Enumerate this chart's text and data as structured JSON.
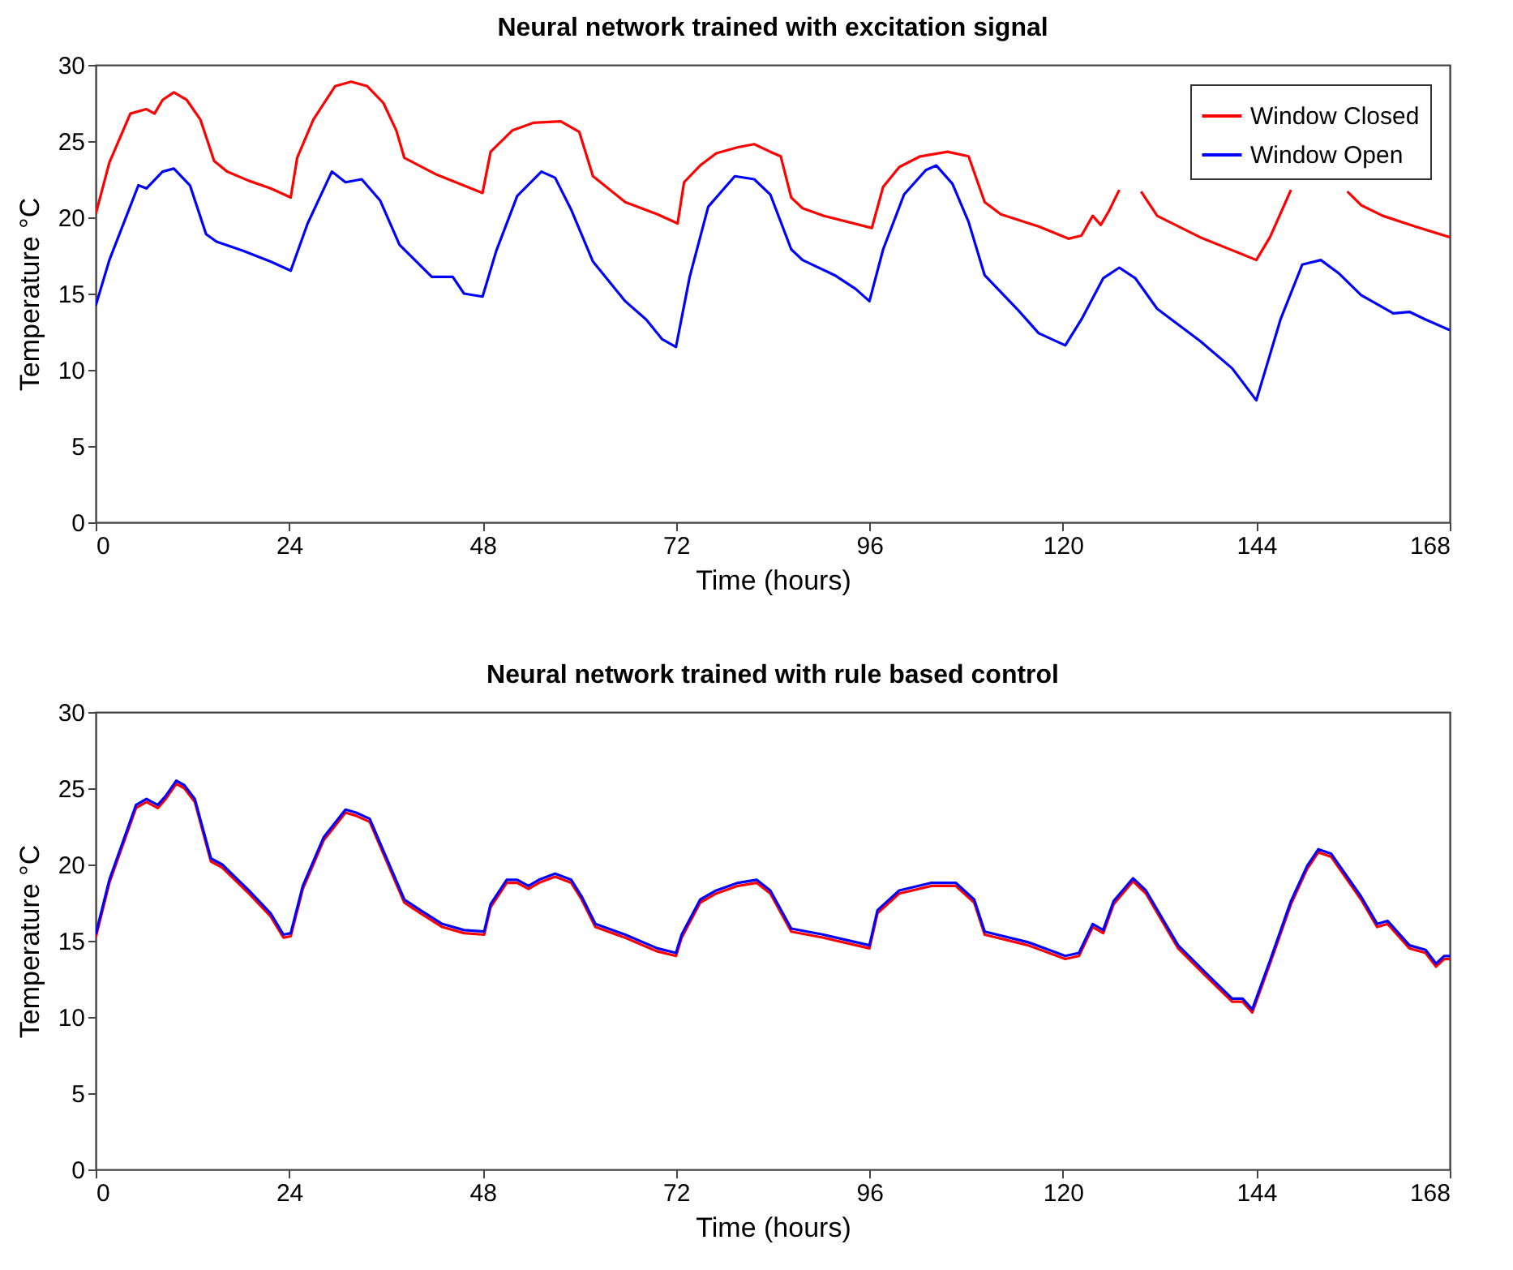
{
  "chart_data": [
    {
      "type": "line",
      "title": "Neural network trained with excitation signal",
      "xlabel": "Time (hours)",
      "ylabel": "Temperature °C",
      "xlim": [
        0,
        168
      ],
      "xticks": [
        0,
        24,
        48,
        72,
        96,
        120,
        144,
        168
      ],
      "ylim": [
        0,
        30
      ],
      "yticks": [
        0,
        5,
        10,
        15,
        20,
        25,
        30
      ],
      "legend": "top right",
      "grid": false,
      "series": [
        {
          "name": "Window Closed",
          "color": "#ff0000",
          "x": [
            0,
            1.7,
            4.3,
            6.3,
            7.3,
            8.3,
            9.7,
            11.3,
            13,
            14.7,
            16.3,
            19,
            21.7,
            24.2,
            25,
            27,
            29.7,
            31.7,
            33.7,
            35.7,
            37.3,
            38.3,
            42.3,
            48,
            49,
            51.7,
            54.3,
            57.7,
            60,
            61.7,
            65.7,
            69.7,
            72.2,
            73,
            75,
            77,
            79.7,
            81.7,
            83.7,
            85,
            86.3,
            87.7,
            90.3,
            96.3,
            97.7,
            99.7,
            102.3,
            105.7,
            108.3,
            110.3,
            112.3,
            117,
            120.7,
            122.3,
            123.7,
            124.7,
            125.7,
            127,
            128.4,
            129.7,
            131.7,
            137,
            144,
            145.7,
            148.3,
            152,
            155.3,
            157,
            159.7,
            163.7,
            168
          ],
          "values": [
            20.2,
            23.6,
            26.8,
            27.1,
            26.8,
            27.7,
            28.2,
            27.7,
            26.4,
            23.7,
            23,
            22.4,
            21.9,
            21.3,
            23.9,
            26.4,
            28.6,
            28.9,
            28.6,
            27.5,
            25.7,
            23.9,
            22.8,
            21.6,
            24.3,
            25.7,
            26.2,
            26.3,
            25.6,
            22.7,
            21,
            20.2,
            19.6,
            22.3,
            23.4,
            24.2,
            24.6,
            24.8,
            24.3,
            24,
            21.3,
            20.6,
            20.1,
            19.3,
            22,
            23.3,
            24,
            24.3,
            24,
            21,
            20.2,
            19.4,
            18.6,
            18.8,
            20.1,
            19.5,
            20.4,
            21.8,
            null,
            21.7,
            20.1,
            18.7,
            17.2,
            18.7,
            21.8,
            null,
            21.7,
            20.8,
            20.1,
            19.4,
            18.7
          ]
        },
        {
          "name": "Window Open",
          "color": "#0000ff",
          "x": [
            0,
            1.7,
            5.3,
            6.3,
            8.3,
            9.7,
            11.7,
            13.7,
            15,
            18.3,
            21.7,
            24.2,
            26.3,
            29.3,
            31,
            33,
            35.3,
            37.7,
            41.7,
            44.3,
            45.7,
            48,
            49.7,
            52.3,
            55.3,
            57,
            59,
            61.7,
            65.7,
            68.3,
            70.3,
            72,
            73.7,
            76,
            79.3,
            81.7,
            83.7,
            86.3,
            87.7,
            91.7,
            94.3,
            96,
            97.7,
            100.3,
            103,
            104.3,
            106.3,
            108.3,
            110.3,
            114.3,
            117,
            120.3,
            122.3,
            125,
            127,
            129,
            131.7,
            137,
            141,
            144,
            147,
            149.7,
            152,
            154.3,
            157,
            161,
            163,
            165,
            168
          ],
          "values": [
            14.2,
            17.2,
            22.1,
            21.9,
            23,
            23.2,
            22.1,
            18.9,
            18.4,
            17.8,
            17.1,
            16.5,
            19.6,
            23,
            22.3,
            22.5,
            21.1,
            18.2,
            16.1,
            16.1,
            15,
            14.8,
            17.8,
            21.4,
            23,
            22.6,
            20.5,
            17.1,
            14.5,
            13.3,
            12,
            11.5,
            16.1,
            20.7,
            22.7,
            22.5,
            21.5,
            17.9,
            17.2,
            16.2,
            15.3,
            14.5,
            17.9,
            21.5,
            23.1,
            23.4,
            22.2,
            19.7,
            16.2,
            14,
            12.4,
            11.6,
            13.3,
            16,
            16.7,
            16,
            14,
            11.9,
            10.1,
            8,
            13.3,
            16.9,
            17.2,
            16.3,
            14.9,
            13.7,
            13.8,
            13.3,
            12.6
          ]
        }
      ]
    },
    {
      "type": "line",
      "title": "Neural network trained with rule based control",
      "xlabel": "Time (hours)",
      "ylabel": "Temperature °C",
      "xlim": [
        0,
        168
      ],
      "xticks": [
        0,
        24,
        48,
        72,
        96,
        120,
        144,
        168
      ],
      "ylim": [
        0,
        30
      ],
      "yticks": [
        0,
        5,
        10,
        15,
        20,
        25,
        30
      ],
      "legend": "top right",
      "grid": false,
      "x": [
        0,
        1.7,
        5,
        6.3,
        7.7,
        8.7,
        10,
        11,
        12.3,
        14.3,
        15.7,
        19,
        21.7,
        23.3,
        24.2,
        25.7,
        28.3,
        31,
        32.3,
        34,
        35.7,
        38.3,
        40.3,
        43,
        45.7,
        48.2,
        49,
        51,
        52.3,
        53.7,
        55,
        57,
        59,
        60.3,
        62,
        65.7,
        69.7,
        72,
        72.7,
        75,
        77,
        79.7,
        82,
        83.7,
        86.3,
        90.3,
        96,
        97,
        99.7,
        103.7,
        106.7,
        109,
        110.3,
        115.7,
        120.3,
        122,
        123.7,
        125,
        126.3,
        128.7,
        130.3,
        134.3,
        137.7,
        141,
        142.3,
        143.5,
        145.7,
        148.3,
        150.3,
        151.7,
        153.3,
        157,
        159,
        160.3,
        163,
        165,
        166.3,
        167.3,
        168
      ],
      "series": [
        {
          "name": "Window Closed",
          "color": "#ff0000",
          "values": [
            15.2,
            18.8,
            23.7,
            24.1,
            23.7,
            24.3,
            25.3,
            25,
            24.1,
            20.2,
            19.8,
            18.1,
            16.6,
            15.2,
            15.3,
            18.4,
            21.6,
            23.4,
            23.2,
            22.8,
            20.7,
            17.5,
            16.8,
            15.9,
            15.5,
            15.4,
            17.2,
            18.8,
            18.8,
            18.4,
            18.8,
            19.2,
            18.8,
            17.7,
            15.9,
            15.2,
            14.3,
            14,
            15.2,
            17.5,
            18.1,
            18.6,
            18.8,
            18.1,
            15.6,
            15.2,
            14.5,
            16.8,
            18.1,
            18.6,
            18.6,
            17.5,
            15.4,
            14.7,
            13.8,
            14,
            15.9,
            15.5,
            17.4,
            18.9,
            18.1,
            14.5,
            12.7,
            11,
            11,
            10.3,
            13.5,
            17.4,
            19.7,
            20.8,
            20.5,
            17.7,
            15.9,
            16.1,
            14.5,
            14.2,
            13.3,
            13.8,
            13.8
          ]
        },
        {
          "name": "Window Open",
          "color": "#0000ff",
          "values": [
            15.4,
            19,
            23.9,
            24.3,
            23.9,
            24.5,
            25.5,
            25.2,
            24.3,
            20.4,
            20,
            18.3,
            16.8,
            15.4,
            15.5,
            18.6,
            21.8,
            23.6,
            23.4,
            23,
            20.9,
            17.7,
            17,
            16.1,
            15.7,
            15.6,
            17.4,
            19,
            19,
            18.6,
            19,
            19.4,
            19,
            17.9,
            16.1,
            15.4,
            14.5,
            14.2,
            15.4,
            17.7,
            18.3,
            18.8,
            19,
            18.3,
            15.8,
            15.4,
            14.7,
            17,
            18.3,
            18.8,
            18.8,
            17.7,
            15.6,
            14.9,
            14,
            14.2,
            16.1,
            15.7,
            17.6,
            19.1,
            18.3,
            14.7,
            12.9,
            11.2,
            11.2,
            10.5,
            13.7,
            17.6,
            19.9,
            21,
            20.7,
            17.9,
            16.1,
            16.3,
            14.7,
            14.4,
            13.5,
            14,
            14
          ]
        }
      ]
    }
  ]
}
